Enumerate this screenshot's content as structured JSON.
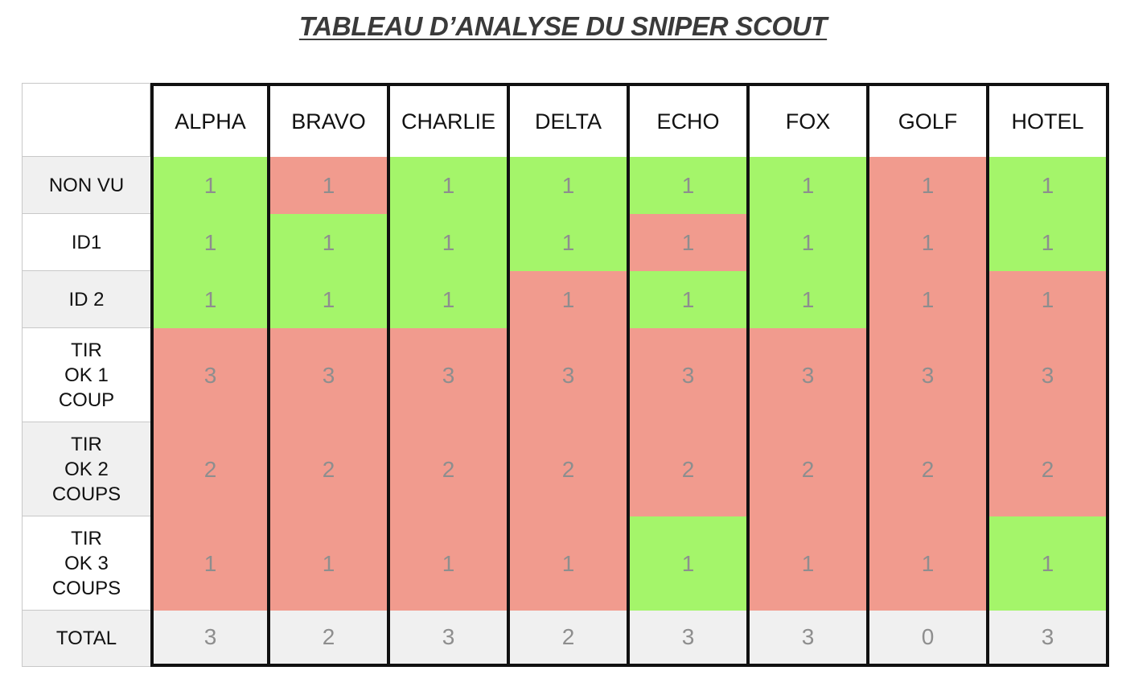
{
  "title": "TABLEAU D’ANALYSE DU SNIPER SCOUT",
  "colors": {
    "green": "#a4f56a",
    "red": "#f19b8e",
    "label_bg": "#f0f0f0",
    "border": "#111111"
  },
  "table": {
    "columns": [
      "ALPHA",
      "BRAVO",
      "CHARLIE",
      "DELTA",
      "ECHO",
      "FOX",
      "GOLF",
      "HOTEL"
    ],
    "rows": [
      {
        "label": "NON VU",
        "cells": [
          {
            "value": "1",
            "status": "green"
          },
          {
            "value": "1",
            "status": "red"
          },
          {
            "value": "1",
            "status": "green"
          },
          {
            "value": "1",
            "status": "green"
          },
          {
            "value": "1",
            "status": "green"
          },
          {
            "value": "1",
            "status": "green"
          },
          {
            "value": "1",
            "status": "red"
          },
          {
            "value": "1",
            "status": "green"
          }
        ]
      },
      {
        "label": "ID1",
        "cells": [
          {
            "value": "1",
            "status": "green"
          },
          {
            "value": "1",
            "status": "green"
          },
          {
            "value": "1",
            "status": "green"
          },
          {
            "value": "1",
            "status": "green"
          },
          {
            "value": "1",
            "status": "red"
          },
          {
            "value": "1",
            "status": "green"
          },
          {
            "value": "1",
            "status": "red"
          },
          {
            "value": "1",
            "status": "green"
          }
        ]
      },
      {
        "label": "ID 2",
        "cells": [
          {
            "value": "1",
            "status": "green"
          },
          {
            "value": "1",
            "status": "green"
          },
          {
            "value": "1",
            "status": "green"
          },
          {
            "value": "1",
            "status": "red"
          },
          {
            "value": "1",
            "status": "green"
          },
          {
            "value": "1",
            "status": "green"
          },
          {
            "value": "1",
            "status": "red"
          },
          {
            "value": "1",
            "status": "red"
          }
        ]
      },
      {
        "label": "TIR\nOK 1\nCOUP",
        "cells": [
          {
            "value": "3",
            "status": "red"
          },
          {
            "value": "3",
            "status": "red"
          },
          {
            "value": "3",
            "status": "red"
          },
          {
            "value": "3",
            "status": "red"
          },
          {
            "value": "3",
            "status": "red"
          },
          {
            "value": "3",
            "status": "red"
          },
          {
            "value": "3",
            "status": "red"
          },
          {
            "value": "3",
            "status": "red"
          }
        ]
      },
      {
        "label": "TIR\nOK 2\nCOUPS",
        "cells": [
          {
            "value": "2",
            "status": "red"
          },
          {
            "value": "2",
            "status": "red"
          },
          {
            "value": "2",
            "status": "red"
          },
          {
            "value": "2",
            "status": "red"
          },
          {
            "value": "2",
            "status": "red"
          },
          {
            "value": "2",
            "status": "red"
          },
          {
            "value": "2",
            "status": "red"
          },
          {
            "value": "2",
            "status": "red"
          }
        ]
      },
      {
        "label": "TIR\nOK 3\nCOUPS",
        "cells": [
          {
            "value": "1",
            "status": "red"
          },
          {
            "value": "1",
            "status": "red"
          },
          {
            "value": "1",
            "status": "red"
          },
          {
            "value": "1",
            "status": "red"
          },
          {
            "value": "1",
            "status": "green"
          },
          {
            "value": "1",
            "status": "red"
          },
          {
            "value": "1",
            "status": "red"
          },
          {
            "value": "1",
            "status": "green"
          }
        ]
      }
    ],
    "total": {
      "label": "TOTAL",
      "values": [
        "3",
        "2",
        "3",
        "2",
        "3",
        "3",
        "0",
        "3"
      ]
    }
  }
}
